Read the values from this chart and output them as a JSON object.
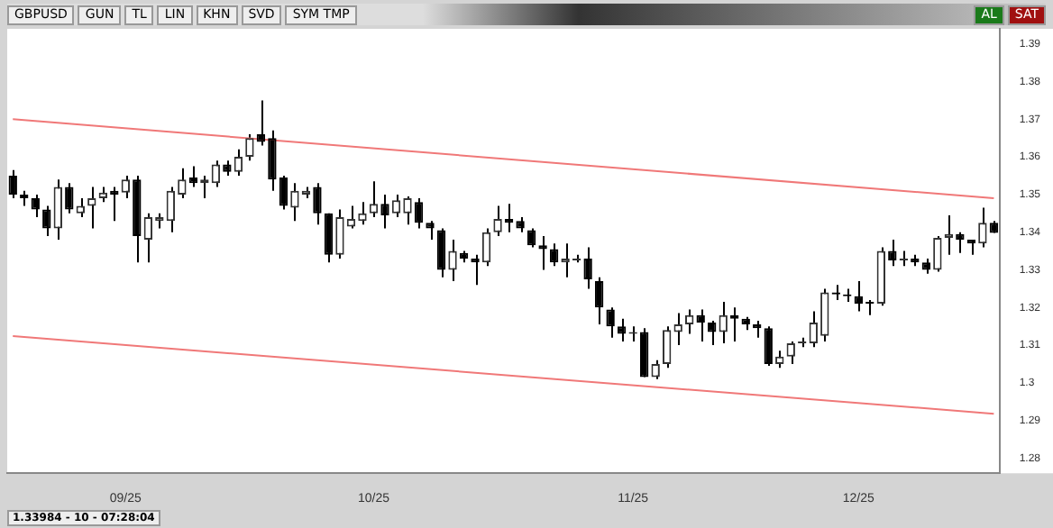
{
  "chart_data": {
    "type": "candlestick",
    "title": "GBPUSD",
    "annotations": [
      "GUN",
      "TL",
      "LIN",
      "KHN",
      "SVD",
      "SYM TMP",
      "AL",
      "SAT",
      "1.33984 - 10 - 07:28:04"
    ],
    "categories": [
      null,
      null,
      null,
      null,
      null,
      null,
      null,
      null,
      null,
      null,
      "09/25",
      null,
      null,
      null,
      null,
      null,
      null,
      null,
      null,
      null,
      null,
      null,
      null,
      null,
      null,
      null,
      null,
      null,
      null,
      null,
      null,
      null,
      "10/25",
      null,
      null,
      null,
      null,
      null,
      null,
      null,
      null,
      null,
      null,
      null,
      null,
      null,
      null,
      null,
      null,
      null,
      null,
      null,
      null,
      null,
      null,
      "11/25",
      null,
      null,
      null,
      null,
      null,
      null,
      null,
      null,
      null,
      null,
      null,
      null,
      null,
      null,
      null,
      null,
      null,
      null,
      null,
      "12/25",
      null,
      null,
      null,
      null,
      null,
      null,
      null,
      null,
      null,
      null,
      null,
      null
    ],
    "ohlc": [
      [
        1.355,
        1.3565,
        1.349,
        1.35
      ],
      [
        1.35,
        1.351,
        1.347,
        1.349
      ],
      [
        1.349,
        1.35,
        1.344,
        1.346
      ],
      [
        1.346,
        1.347,
        1.339,
        1.341
      ],
      [
        1.341,
        1.354,
        1.338,
        1.352
      ],
      [
        1.352,
        1.353,
        1.345,
        1.346
      ],
      [
        1.345,
        1.349,
        1.344,
        1.347
      ],
      [
        1.347,
        1.352,
        1.341,
        1.349
      ],
      [
        1.349,
        1.352,
        1.348,
        1.3505
      ],
      [
        1.351,
        1.352,
        1.343,
        1.35
      ],
      [
        1.3505,
        1.355,
        1.349,
        1.354
      ],
      [
        1.354,
        1.355,
        1.332,
        1.339
      ],
      [
        1.338,
        1.345,
        1.332,
        1.344
      ],
      [
        1.343,
        1.345,
        1.341,
        1.344
      ],
      [
        1.343,
        1.352,
        1.34,
        1.351
      ],
      [
        1.35,
        1.357,
        1.349,
        1.354
      ],
      [
        1.3545,
        1.3575,
        1.352,
        1.353
      ],
      [
        1.353,
        1.355,
        1.349,
        1.354
      ],
      [
        1.353,
        1.359,
        1.352,
        1.358
      ],
      [
        1.358,
        1.359,
        1.355,
        1.356
      ],
      [
        1.356,
        1.362,
        1.355,
        1.36
      ],
      [
        1.36,
        1.366,
        1.359,
        1.365
      ],
      [
        1.366,
        1.375,
        1.363,
        1.364
      ],
      [
        1.365,
        1.367,
        1.351,
        1.354
      ],
      [
        1.3545,
        1.355,
        1.346,
        1.347
      ],
      [
        1.3465,
        1.353,
        1.343,
        1.351
      ],
      [
        1.35,
        1.352,
        1.349,
        1.351
      ],
      [
        1.352,
        1.353,
        1.342,
        1.345
      ],
      [
        1.345,
        1.345,
        1.332,
        1.334
      ],
      [
        1.334,
        1.346,
        1.333,
        1.344
      ],
      [
        1.3415,
        1.347,
        1.341,
        1.3435
      ],
      [
        1.343,
        1.348,
        1.342,
        1.345
      ],
      [
        1.345,
        1.3535,
        1.344,
        1.3475
      ],
      [
        1.3475,
        1.35,
        1.341,
        1.3445
      ],
      [
        1.345,
        1.35,
        1.344,
        1.3485
      ],
      [
        1.345,
        1.3495,
        1.342,
        1.349
      ],
      [
        1.348,
        1.349,
        1.341,
        1.3425
      ],
      [
        1.3425,
        1.343,
        1.338,
        1.341
      ],
      [
        1.3405,
        1.341,
        1.328,
        1.33
      ],
      [
        1.33,
        1.338,
        1.327,
        1.335
      ],
      [
        1.3345,
        1.335,
        1.332,
        1.333
      ],
      [
        1.333,
        1.334,
        1.326,
        1.332
      ],
      [
        1.332,
        1.341,
        1.331,
        1.34
      ],
      [
        1.34,
        1.347,
        1.339,
        1.3435
      ],
      [
        1.3435,
        1.3475,
        1.34,
        1.3425
      ],
      [
        1.343,
        1.344,
        1.34,
        1.341
      ],
      [
        1.3405,
        1.341,
        1.336,
        1.3365
      ],
      [
        1.3365,
        1.339,
        1.33,
        1.3355
      ],
      [
        1.3355,
        1.337,
        1.331,
        1.332
      ],
      [
        1.332,
        1.337,
        1.328,
        1.333
      ],
      [
        1.3325,
        1.334,
        1.332,
        1.333
      ],
      [
        1.333,
        1.336,
        1.325,
        1.3275
      ],
      [
        1.327,
        1.328,
        1.3155,
        1.32
      ],
      [
        1.3195,
        1.32,
        1.312,
        1.315
      ],
      [
        1.315,
        1.317,
        1.311,
        1.313
      ],
      [
        1.313,
        1.315,
        1.311,
        1.3135
      ],
      [
        1.3135,
        1.3145,
        1.3015,
        1.3015
      ],
      [
        1.3015,
        1.306,
        1.301,
        1.305
      ],
      [
        1.305,
        1.315,
        1.304,
        1.314
      ],
      [
        1.3135,
        1.3185,
        1.31,
        1.3155
      ],
      [
        1.3155,
        1.3195,
        1.313,
        1.318
      ],
      [
        1.318,
        1.3195,
        1.311,
        1.316
      ],
      [
        1.316,
        1.3165,
        1.31,
        1.3135
      ],
      [
        1.3135,
        1.3215,
        1.3105,
        1.318
      ],
      [
        1.318,
        1.32,
        1.311,
        1.317
      ],
      [
        1.317,
        1.3175,
        1.314,
        1.3155
      ],
      [
        1.3155,
        1.3165,
        1.312,
        1.3145
      ],
      [
        1.3145,
        1.315,
        1.3045,
        1.305
      ],
      [
        1.305,
        1.3085,
        1.304,
        1.307
      ],
      [
        1.307,
        1.311,
        1.305,
        1.3105
      ],
      [
        1.3105,
        1.312,
        1.3095,
        1.311
      ],
      [
        1.3105,
        1.319,
        1.3095,
        1.316
      ],
      [
        1.3125,
        1.325,
        1.311,
        1.324
      ],
      [
        1.324,
        1.326,
        1.322,
        1.3235
      ],
      [
        1.3235,
        1.325,
        1.3215,
        1.323
      ],
      [
        1.323,
        1.327,
        1.319,
        1.321
      ],
      [
        1.3215,
        1.322,
        1.318,
        1.321
      ],
      [
        1.321,
        1.336,
        1.3205,
        1.335
      ],
      [
        1.335,
        1.338,
        1.331,
        1.3325
      ],
      [
        1.3325,
        1.335,
        1.331,
        1.333
      ],
      [
        1.333,
        1.334,
        1.331,
        1.332
      ],
      [
        1.332,
        1.333,
        1.329,
        1.33
      ],
      [
        1.33,
        1.339,
        1.3295,
        1.3385
      ],
      [
        1.3385,
        1.3445,
        1.334,
        1.3395
      ],
      [
        1.3395,
        1.34,
        1.3345,
        1.338
      ],
      [
        1.338,
        1.338,
        1.334,
        1.337
      ],
      [
        1.337,
        1.3465,
        1.336,
        1.3425
      ],
      [
        1.3425,
        1.343,
        1.3398,
        1.3398
      ]
    ],
    "series": [
      {
        "type": "line",
        "color": "#f07878",
        "values": [
          1.37,
          null,
          null,
          null,
          null,
          null,
          null,
          null,
          null,
          null,
          null,
          null,
          null,
          null,
          null,
          null,
          null,
          null,
          null,
          null,
          null,
          null,
          null,
          null,
          null,
          null,
          null,
          null,
          null,
          null,
          null,
          null,
          null,
          null,
          null,
          null,
          null,
          null,
          null,
          null,
          null,
          null,
          null,
          null,
          null,
          null,
          null,
          null,
          null,
          null,
          null,
          null,
          null,
          null,
          null,
          null,
          null,
          null,
          null,
          null,
          null,
          null,
          null,
          null,
          null,
          null,
          null,
          null,
          null,
          null,
          null,
          null,
          null,
          null,
          null,
          null,
          null,
          null,
          null,
          null,
          null,
          null,
          null,
          null,
          null,
          null,
          null,
          1.349
        ]
      },
      {
        "type": "line",
        "color": "#f07878",
        "values": [
          1.3124,
          null,
          null,
          null,
          null,
          null,
          null,
          null,
          null,
          null,
          null,
          null,
          null,
          null,
          null,
          null,
          null,
          null,
          null,
          null,
          null,
          null,
          null,
          null,
          null,
          null,
          null,
          null,
          null,
          null,
          null,
          null,
          null,
          null,
          null,
          null,
          null,
          null,
          null,
          null,
          null,
          null,
          null,
          null,
          null,
          null,
          null,
          null,
          null,
          null,
          null,
          null,
          null,
          null,
          null,
          null,
          null,
          null,
          null,
          null,
          null,
          null,
          null,
          null,
          null,
          null,
          null,
          null,
          null,
          null,
          null,
          null,
          null,
          null,
          null,
          null,
          null,
          null,
          null,
          null,
          null,
          null,
          null,
          null,
          null,
          null,
          null,
          1.2918
        ]
      }
    ],
    "ylim": [
      1.276,
      1.394
    ],
    "yticks": [
      1.28,
      1.29,
      1.3,
      1.31,
      1.32,
      1.33,
      1.34,
      1.35,
      1.36,
      1.37,
      1.38,
      1.39
    ],
    "grid": false,
    "legend": false
  }
}
